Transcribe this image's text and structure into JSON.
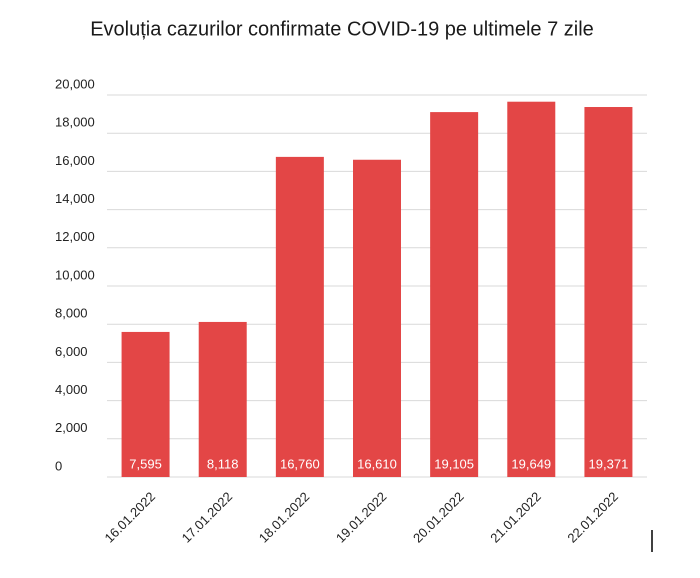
{
  "chart_data": {
    "type": "bar",
    "title": "Evoluția cazurilor confirmate COVID-19 pe ultimele 7 zile",
    "categories": [
      "16.01.2022",
      "17.01.2022",
      "18.01.2022",
      "19.01.2022",
      "20.01.2022",
      "21.01.2022",
      "22.01.2022"
    ],
    "values": [
      7595,
      8118,
      16760,
      16610,
      19105,
      19649,
      19371
    ],
    "value_labels": [
      "7,595",
      "8,118",
      "16,760",
      "16,610",
      "19,105",
      "19,649",
      "19,371"
    ],
    "color": "#e34646",
    "ylim": [
      0,
      20000
    ],
    "yticks": [
      0,
      {
        "value": 2000,
        "label": "2,000"
      },
      {
        "value": 4000,
        "label": "4,000"
      },
      {
        "value": 6000,
        "label": "6,000"
      },
      {
        "value": 8000,
        "label": "8,000"
      },
      {
        "value": 10000,
        "label": "10,000"
      },
      {
        "value": 12000,
        "label": "12,000"
      },
      {
        "value": 14000,
        "label": "14,000"
      },
      {
        "value": 16000,
        "label": "16,000"
      },
      {
        "value": 18000,
        "label": "18,000"
      },
      {
        "value": 20000,
        "label": "20,000"
      }
    ],
    "grid": true
  }
}
